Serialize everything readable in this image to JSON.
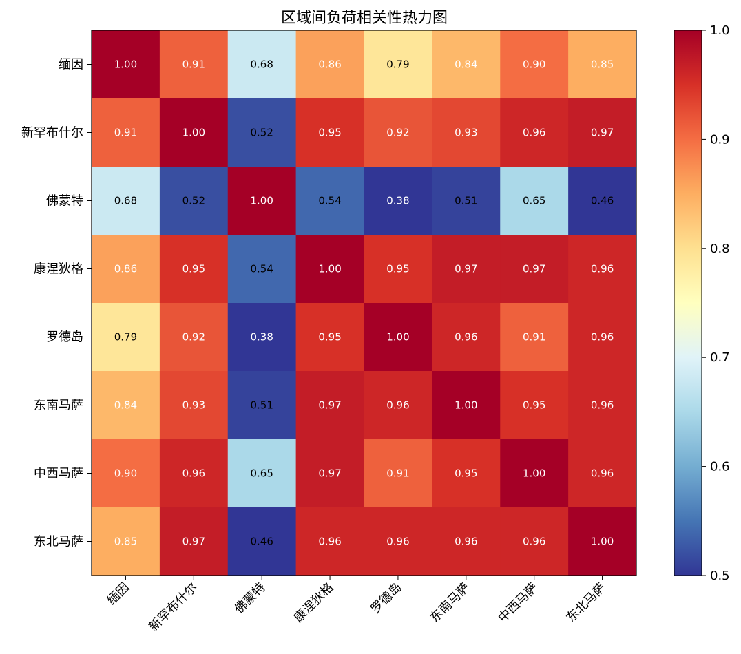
{
  "chart_data": {
    "type": "heatmap",
    "title": "区域间负荷相关性热力图",
    "x_categories": [
      "缅因",
      "新罕布什尔",
      "佛蒙特",
      "康涅狄格",
      "罗德岛",
      "东南马萨",
      "中西马萨",
      "东北马萨"
    ],
    "y_categories": [
      "缅因",
      "新罕布什尔",
      "佛蒙特",
      "康涅狄格",
      "罗德岛",
      "东南马萨",
      "中西马萨",
      "东北马萨"
    ],
    "values": [
      [
        1.0,
        0.91,
        0.68,
        0.86,
        0.79,
        0.84,
        0.9,
        0.85
      ],
      [
        0.91,
        1.0,
        0.52,
        0.95,
        0.92,
        0.93,
        0.96,
        0.97
      ],
      [
        0.68,
        0.52,
        1.0,
        0.54,
        0.38,
        0.51,
        0.65,
        0.46
      ],
      [
        0.86,
        0.95,
        0.54,
        1.0,
        0.95,
        0.97,
        0.97,
        0.96
      ],
      [
        0.79,
        0.92,
        0.38,
        0.95,
        1.0,
        0.96,
        0.91,
        0.96
      ],
      [
        0.84,
        0.93,
        0.51,
        0.97,
        0.96,
        1.0,
        0.95,
        0.96
      ],
      [
        0.9,
        0.96,
        0.65,
        0.97,
        0.91,
        0.95,
        1.0,
        0.96
      ],
      [
        0.85,
        0.97,
        0.46,
        0.96,
        0.96,
        0.96,
        0.96,
        1.0
      ]
    ],
    "colormap": "RdYlBu_r",
    "vmin": 0.5,
    "vmax": 1.0,
    "colorbar_ticks": [
      "0.5",
      "0.6",
      "0.7",
      "0.8",
      "0.9",
      "1.0"
    ],
    "value_format": "2 decimals",
    "x_tick_rotation": "45 degrees",
    "grid": false
  }
}
